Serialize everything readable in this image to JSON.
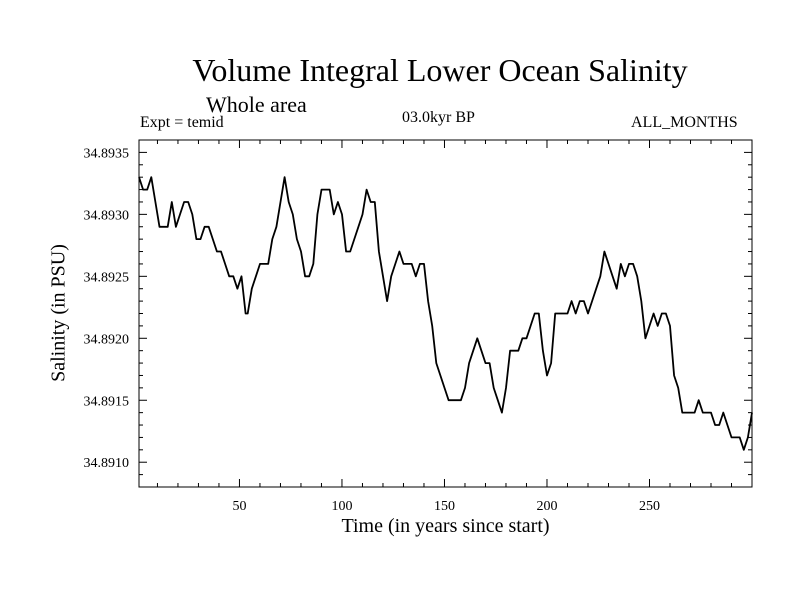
{
  "chart_data": {
    "type": "line",
    "title": "Volume Integral Lower Ocean Salinity",
    "subtitle": "Whole area",
    "left_label": "Expt = temid",
    "center_label": "03.0kyr BP",
    "right_label": "ALL_MONTHS",
    "xlabel": "Time (in years since start)",
    "ylabel": "Salinity (in PSU)",
    "xlim": [
      1,
      300
    ],
    "ylim": [
      34.8908,
      34.8936
    ],
    "xticks": [
      50,
      100,
      150,
      200,
      250
    ],
    "xtick_labels": [
      "50",
      "100",
      "150",
      "200",
      "250"
    ],
    "yticks": [
      34.891,
      34.8915,
      34.892,
      34.8925,
      34.893,
      34.8935
    ],
    "ytick_labels": [
      "34.8910",
      "34.8915",
      "34.8920",
      "34.8925",
      "34.8930",
      "34.8935"
    ],
    "series": [
      {
        "name": "Salinity",
        "x": [
          1,
          3,
          5,
          7,
          9,
          11,
          13,
          15,
          17,
          19,
          21,
          23,
          25,
          27,
          29,
          31,
          33,
          35,
          37,
          39,
          41,
          43,
          45,
          47,
          49,
          51,
          53,
          54,
          56,
          58,
          60,
          62,
          64,
          66,
          68,
          70,
          72,
          74,
          76,
          78,
          80,
          82,
          84,
          86,
          88,
          90,
          92,
          94,
          96,
          98,
          100,
          102,
          104,
          106,
          108,
          110,
          112,
          114,
          116,
          118,
          120,
          122,
          124,
          126,
          128,
          130,
          132,
          134,
          136,
          138,
          140,
          142,
          144,
          146,
          148,
          150,
          152,
          154,
          156,
          158,
          160,
          162,
          164,
          166,
          168,
          170,
          172,
          174,
          176,
          178,
          180,
          182,
          184,
          186,
          188,
          190,
          192,
          194,
          196,
          198,
          200,
          202,
          204,
          206,
          208,
          210,
          212,
          214,
          216,
          218,
          220,
          222,
          224,
          226,
          228,
          230,
          232,
          234,
          236,
          238,
          240,
          242,
          244,
          246,
          248,
          250,
          252,
          254,
          256,
          258,
          260,
          262,
          264,
          266,
          268,
          270,
          272,
          274,
          276,
          278,
          280,
          282,
          284,
          286,
          288,
          290,
          292,
          294,
          296,
          298,
          300
        ],
        "values": [
          34.8933,
          34.8932,
          34.8932,
          34.8933,
          34.8931,
          34.8929,
          34.8929,
          34.8929,
          34.8931,
          34.8929,
          34.893,
          34.8931,
          34.8931,
          34.893,
          34.8928,
          34.8928,
          34.8929,
          34.8929,
          34.8928,
          34.8927,
          34.8927,
          34.8926,
          34.8925,
          34.8925,
          34.8924,
          34.8925,
          34.8922,
          34.8922,
          34.8924,
          34.8925,
          34.8926,
          34.8926,
          34.8926,
          34.8928,
          34.8929,
          34.8931,
          34.8933,
          34.8931,
          34.893,
          34.8928,
          34.8927,
          34.8925,
          34.8925,
          34.8926,
          34.893,
          34.8932,
          34.8932,
          34.8932,
          34.893,
          34.8931,
          34.893,
          34.8927,
          34.8927,
          34.8928,
          34.8929,
          34.893,
          34.8932,
          34.8931,
          34.8931,
          34.8927,
          34.8925,
          34.8923,
          34.8925,
          34.8926,
          34.8927,
          34.8926,
          34.8926,
          34.8926,
          34.8925,
          34.8926,
          34.8926,
          34.8923,
          34.8921,
          34.8918,
          34.8917,
          34.8916,
          34.8915,
          34.8915,
          34.8915,
          34.8915,
          34.8916,
          34.8918,
          34.8919,
          34.892,
          34.8919,
          34.8918,
          34.8918,
          34.8916,
          34.8915,
          34.8914,
          34.8916,
          34.8919,
          34.8919,
          34.8919,
          34.892,
          34.892,
          34.8921,
          34.8922,
          34.8922,
          34.8919,
          34.8917,
          34.8918,
          34.8922,
          34.8922,
          34.8922,
          34.8922,
          34.8923,
          34.8922,
          34.8923,
          34.8923,
          34.8922,
          34.8923,
          34.8924,
          34.8925,
          34.8927,
          34.8926,
          34.8925,
          34.8924,
          34.8926,
          34.8925,
          34.8926,
          34.8926,
          34.8925,
          34.8923,
          34.892,
          34.8921,
          34.8922,
          34.8921,
          34.8922,
          34.8922,
          34.8921,
          34.8917,
          34.8916,
          34.8914,
          34.8914,
          34.8914,
          34.8914,
          34.8915,
          34.8914,
          34.8914,
          34.8914,
          34.8913,
          34.8913,
          34.8914,
          34.8913,
          34.8912,
          34.8912,
          34.8912,
          34.8911,
          34.8912,
          34.8914
        ]
      }
    ]
  }
}
